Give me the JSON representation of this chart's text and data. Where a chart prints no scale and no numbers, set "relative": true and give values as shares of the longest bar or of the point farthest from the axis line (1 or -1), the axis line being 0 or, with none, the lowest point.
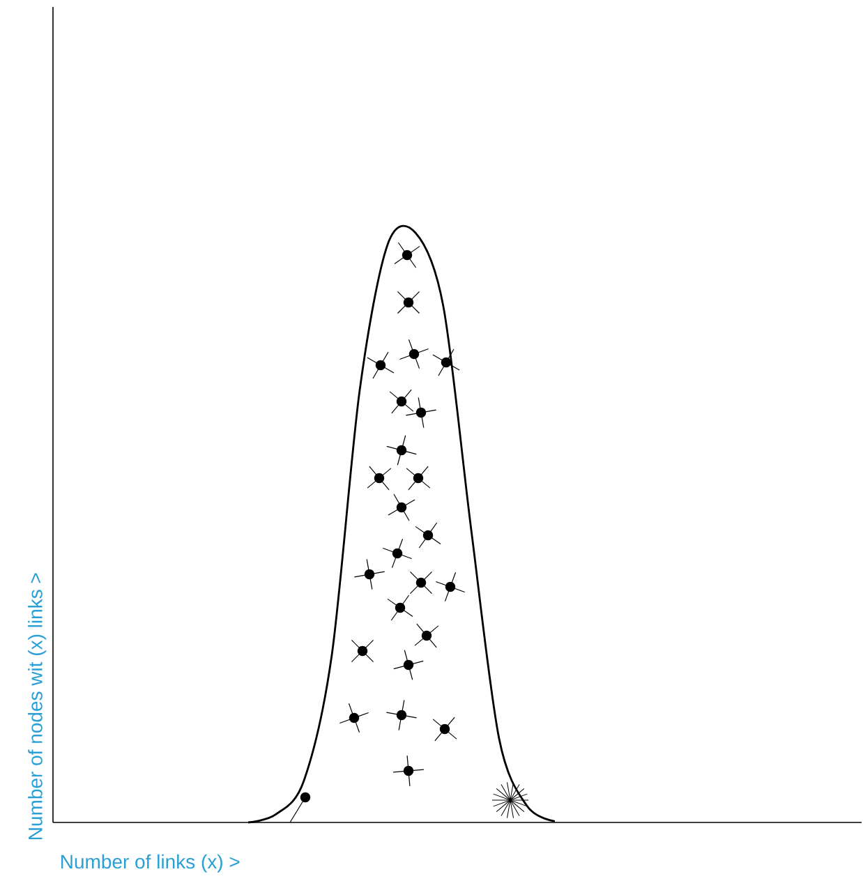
{
  "chart_data": {
    "type": "line",
    "relative": true,
    "xlabel": "Number of links (x) >",
    "ylabel": "Number of nodes wit (x) links >",
    "categories": [
      null,
      null,
      null,
      null,
      null,
      null,
      null,
      null,
      null,
      null,
      null,
      null,
      null,
      null,
      null,
      null,
      null,
      null,
      null,
      null,
      null,
      null,
      null,
      null,
      null,
      null,
      null,
      null,
      null,
      null
    ],
    "series": [
      {
        "color": "#000000",
        "values": [
          null,
          null,
          null,
          null,
          null,
          null,
          null,
          0,
          0.014,
          0.071,
          0.284,
          0.733,
          0.98,
          1,
          0.875,
          0.496,
          0.142,
          0.028,
          0.002,
          null,
          null,
          null,
          null,
          null,
          null,
          null,
          null,
          null,
          null,
          null
        ]
      }
    ]
  }
}
